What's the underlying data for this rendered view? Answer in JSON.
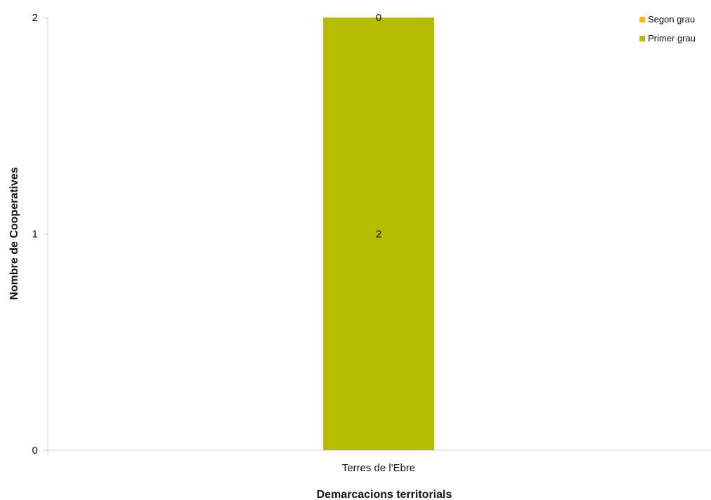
{
  "chart_data": {
    "type": "bar",
    "stacked": true,
    "categories": [
      "Terres de l'Ebre"
    ],
    "series": [
      {
        "name": "Primer grau",
        "values": [
          2
        ],
        "color": "#b5bd00",
        "data_labels": [
          "2"
        ]
      },
      {
        "name": "Segon grau",
        "values": [
          0
        ],
        "color": "#ffb400",
        "data_labels": [
          "0"
        ]
      }
    ],
    "xlabel": "Demarcacions territorials",
    "ylabel": "Nombre de Cooperatives",
    "ylim": [
      0,
      2
    ],
    "yticks": [
      0,
      1,
      2
    ],
    "grid": false,
    "legend": {
      "placement": "top-right",
      "entries": [
        {
          "label": "Segon grau",
          "color": "#ffb400"
        },
        {
          "label": "Primer grau",
          "color": "#b5bd00"
        }
      ]
    },
    "axis_color": "#cccccc"
  }
}
